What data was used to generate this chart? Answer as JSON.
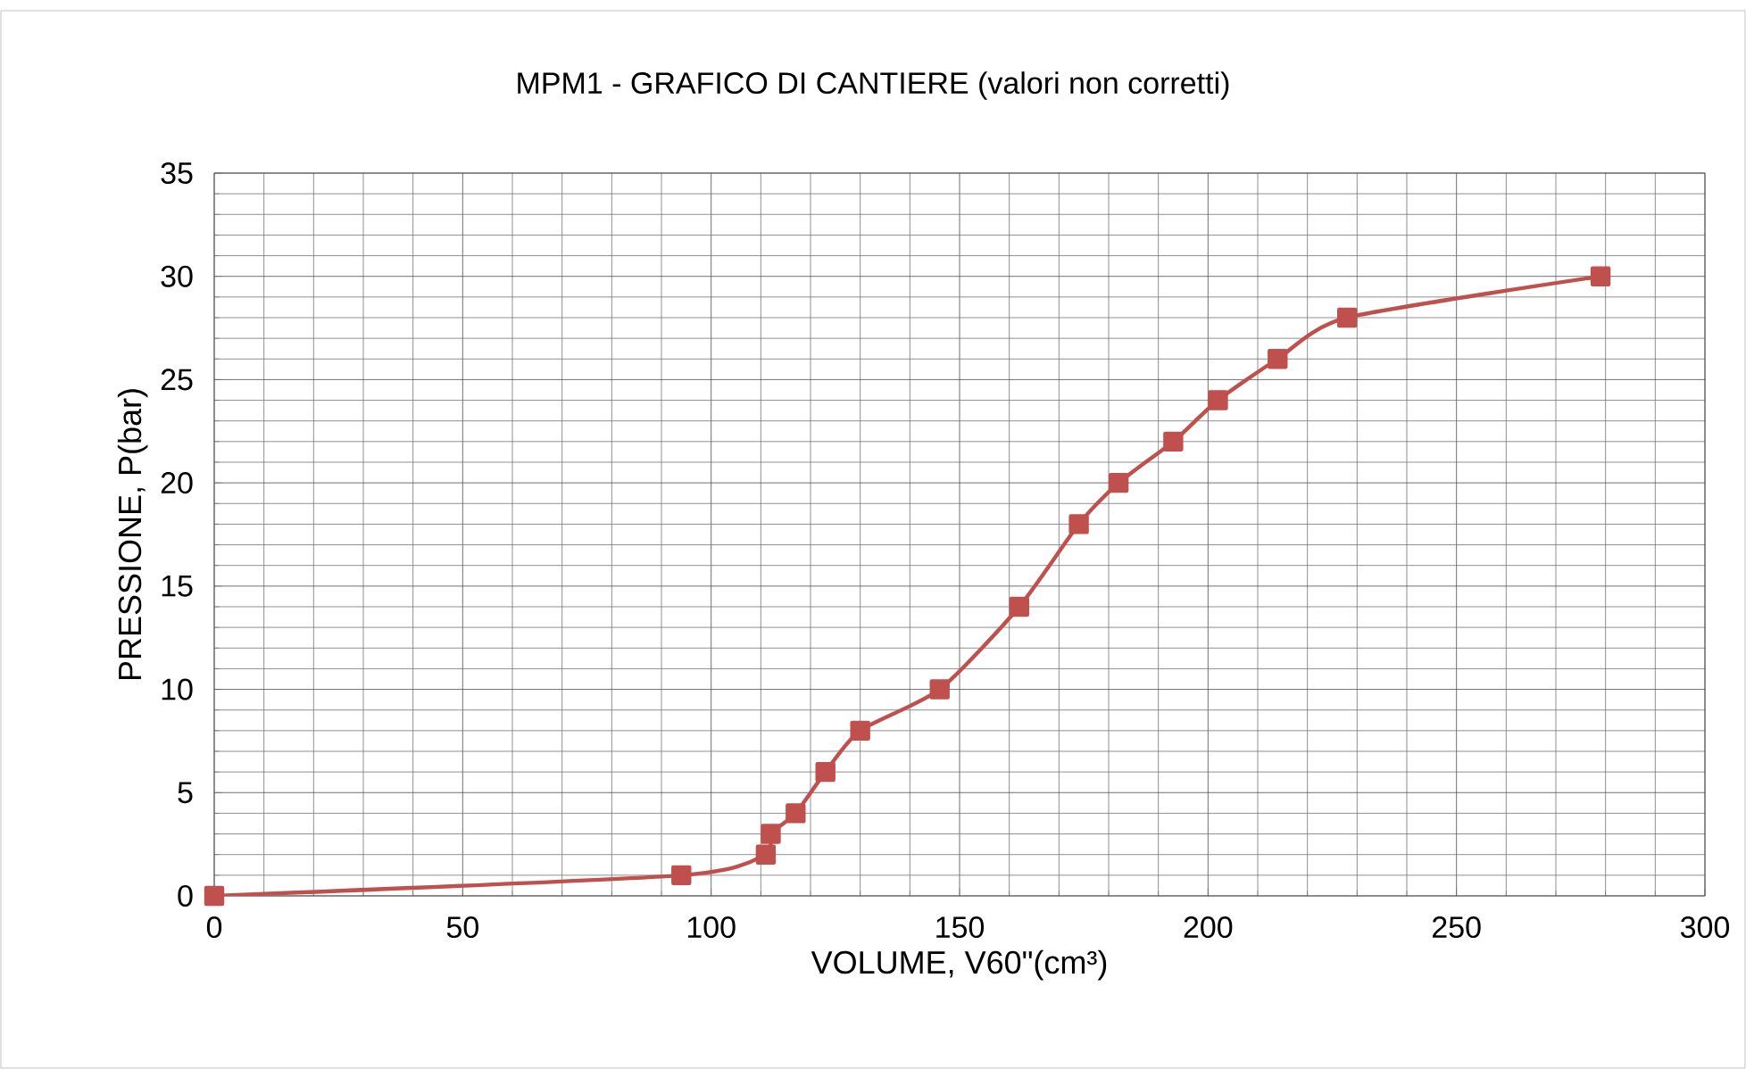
{
  "chart_data": {
    "type": "line",
    "title": "MPM1 - GRAFICO DI CANTIERE (valori non corretti)",
    "xlabel": "VOLUME, V60\"(cm³)",
    "ylabel": "PRESSIONE, P(bar)",
    "xlim": [
      0,
      300
    ],
    "xticks": [
      0,
      50,
      100,
      150,
      200,
      250,
      300
    ],
    "ylim": [
      0,
      35
    ],
    "yticks": [
      0,
      5,
      10,
      15,
      20,
      25,
      30,
      35
    ],
    "grid": true,
    "marker": "square",
    "line_style": "solid",
    "series": [
      {
        "color": "#c0504d",
        "x": [
          0,
          94,
          111,
          112,
          117,
          123,
          130,
          146,
          162,
          174,
          182,
          193,
          202,
          214,
          228,
          279
        ],
        "values": [
          0,
          1,
          2,
          3,
          4,
          6,
          8,
          10,
          14,
          18,
          20,
          22,
          24,
          26,
          28,
          30
        ]
      }
    ]
  }
}
